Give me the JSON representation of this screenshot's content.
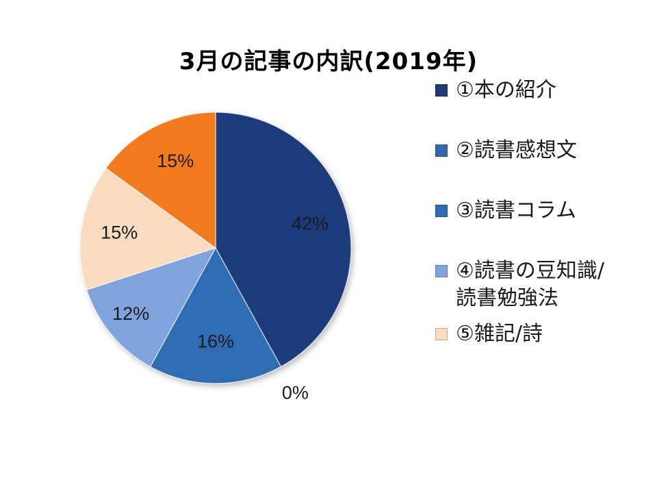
{
  "chart_data": {
    "type": "pie",
    "title": "3月の記事の内訳(2019年)",
    "categories": [
      "①本の紹介",
      "②読書感想文",
      "③読書コラム",
      "④読書の豆知識/\n読書勉強法",
      "⑤雑記/詩",
      ""
    ],
    "values": [
      42,
      0,
      16,
      12,
      15,
      15
    ],
    "value_labels": [
      "42%",
      "0%",
      "16%",
      "12%",
      "15%",
      "15%"
    ],
    "colors": [
      "#1f3a7a",
      "#3567ad",
      "#2f6cb3",
      "#7fa3dc",
      "#fbdcc0",
      "#f07a1a"
    ],
    "legend_position": "right",
    "start_angle_deg": 0,
    "direction": "clockwise"
  }
}
